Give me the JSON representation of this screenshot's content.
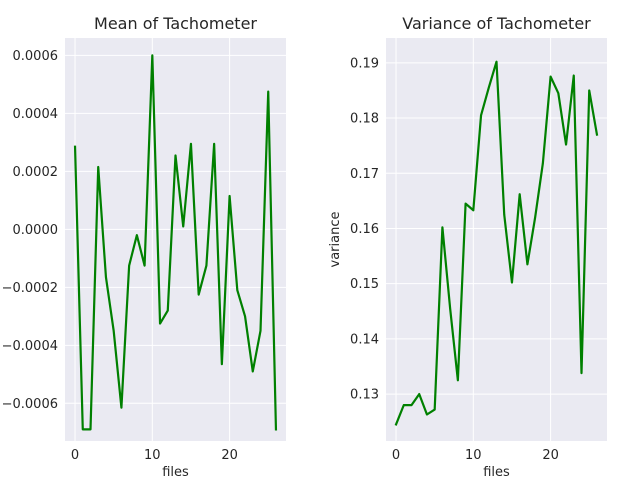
{
  "chart_data": [
    {
      "type": "line",
      "title": "Mean of Tachometer",
      "xlabel": "files",
      "ylabel": "",
      "xlim": [
        -1.3,
        27.3
      ],
      "ylim": [
        -0.00073,
        0.00066
      ],
      "xticks": [
        0,
        10,
        20
      ],
      "xtick_labels": [
        "0",
        "10",
        "20"
      ],
      "yticks": [
        -0.0006,
        -0.0004,
        -0.0002,
        0.0,
        0.0002,
        0.0004,
        0.0006
      ],
      "ytick_labels": [
        "−0.0006",
        "−0.0004",
        "−0.0002",
        "0.0000",
        "0.0002",
        "0.0004",
        "0.0006"
      ],
      "grid": true,
      "series": [
        {
          "color": "#008000",
          "x": [
            0,
            1,
            2,
            3,
            4,
            5,
            6,
            7,
            8,
            9,
            10,
            11,
            12,
            13,
            14,
            15,
            16,
            17,
            18,
            19,
            20,
            21,
            22,
            23,
            24,
            25,
            26
          ],
          "y": [
            0.000285,
            -0.00069,
            -0.00069,
            0.000215,
            -0.000165,
            -0.00035,
            -0.000615,
            -0.000125,
            -2e-05,
            -0.000125,
            0.0006,
            -0.000325,
            -0.00028,
            0.000255,
            1e-05,
            0.000295,
            -0.000225,
            -0.000125,
            0.000295,
            -0.000465,
            0.000115,
            -0.00021,
            -0.0003,
            -0.00049,
            -0.00035,
            0.000475,
            -0.00069
          ]
        }
      ]
    },
    {
      "type": "line",
      "title": "Variance of Tachometer",
      "xlabel": "files",
      "ylabel": "variance",
      "xlim": [
        -1.3,
        27.3
      ],
      "ylim": [
        0.1215,
        0.1945
      ],
      "xticks": [
        0,
        10,
        20
      ],
      "xtick_labels": [
        "0",
        "10",
        "20"
      ],
      "yticks": [
        0.13,
        0.14,
        0.15,
        0.16,
        0.17,
        0.18,
        0.19
      ],
      "ytick_labels": [
        "0.13",
        "0.14",
        "0.15",
        "0.16",
        "0.17",
        "0.18",
        "0.19"
      ],
      "grid": true,
      "series": [
        {
          "color": "#008000",
          "x": [
            0,
            1,
            2,
            3,
            4,
            5,
            6,
            7,
            8,
            9,
            10,
            11,
            12,
            13,
            14,
            15,
            16,
            17,
            18,
            19,
            20,
            21,
            22,
            23,
            24,
            25,
            26
          ],
          "y": [
            0.1245,
            0.128,
            0.128,
            0.13,
            0.1263,
            0.1272,
            0.1602,
            0.1455,
            0.1325,
            0.1645,
            0.1633,
            0.1805,
            0.1855,
            0.1902,
            0.1625,
            0.1502,
            0.1662,
            0.1535,
            0.162,
            0.1718,
            0.1875,
            0.1845,
            0.1752,
            0.1877,
            0.1338,
            0.185,
            0.177
          ]
        }
      ]
    }
  ]
}
